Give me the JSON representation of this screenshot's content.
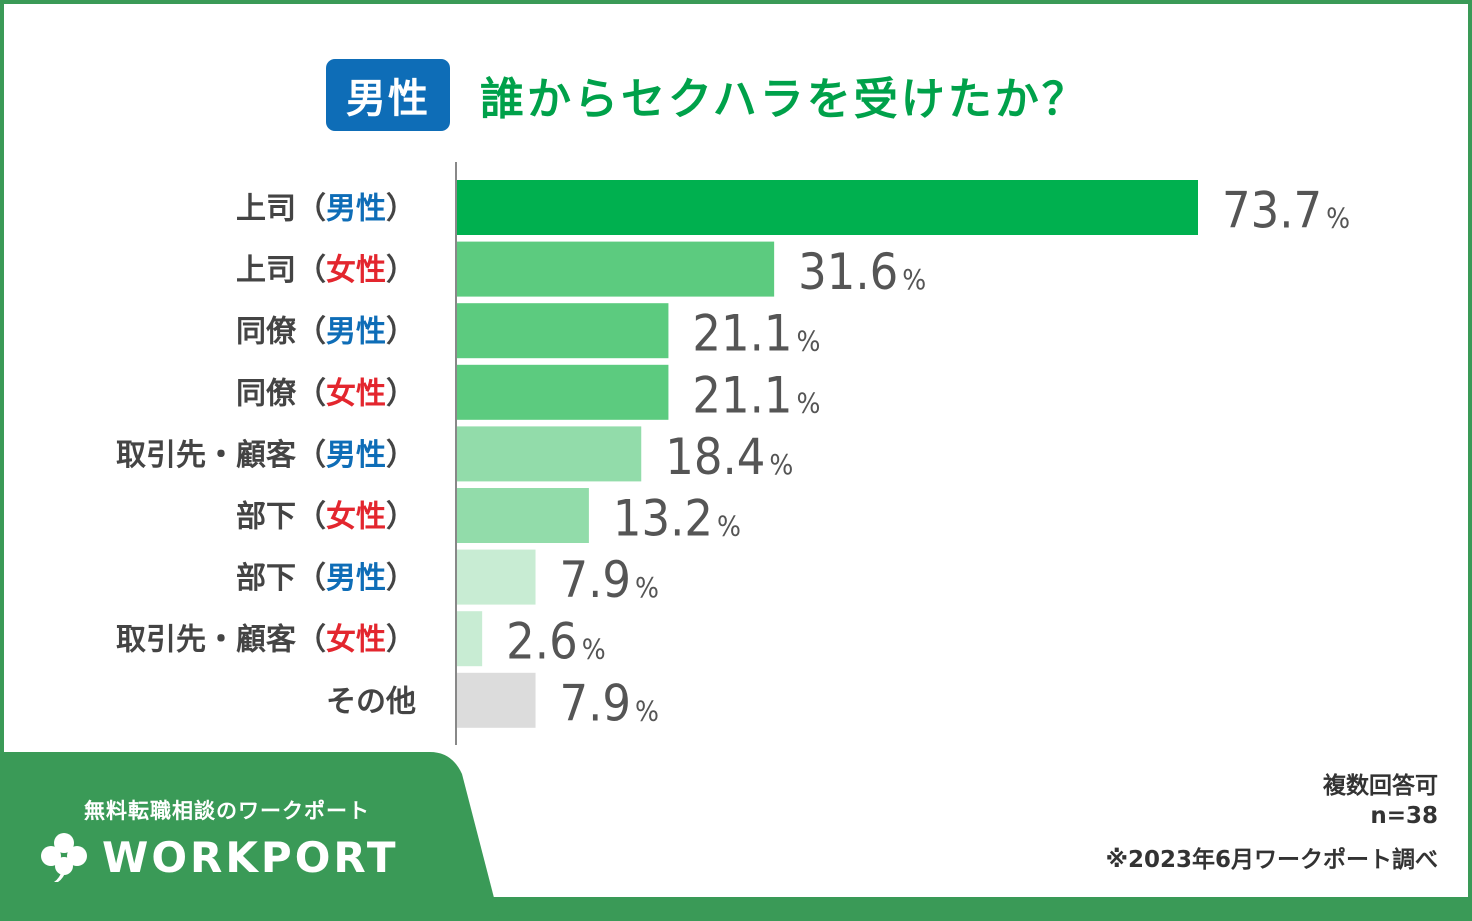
{
  "header": {
    "badge": "男性",
    "title": "誰からセクハラを受けたか？"
  },
  "chart_data": {
    "type": "bar",
    "orientation": "horizontal",
    "title": "誰からセクハラを受けたか？",
    "categories": [
      {
        "label": "上司",
        "gender": "男性",
        "gender_color": "#0e6db7"
      },
      {
        "label": "上司",
        "gender": "女性",
        "gender_color": "#e3262e"
      },
      {
        "label": "同僚",
        "gender": "男性",
        "gender_color": "#0e6db7"
      },
      {
        "label": "同僚",
        "gender": "女性",
        "gender_color": "#e3262e"
      },
      {
        "label": "取引先・顧客",
        "gender": "男性",
        "gender_color": "#0e6db7"
      },
      {
        "label": "部下",
        "gender": "女性",
        "gender_color": "#e3262e"
      },
      {
        "label": "部下",
        "gender": "男性",
        "gender_color": "#0e6db7"
      },
      {
        "label": "取引先・顧客",
        "gender": "女性",
        "gender_color": "#e3262e"
      },
      {
        "label": "その他",
        "gender": "",
        "gender_color": ""
      }
    ],
    "values": [
      73.7,
      31.6,
      21.1,
      21.1,
      18.4,
      13.2,
      7.9,
      2.6,
      7.9
    ],
    "value_labels": [
      "73.7",
      "31.6",
      "21.1",
      "21.1",
      "18.4",
      "13.2",
      "7.9",
      "2.6",
      "7.9"
    ],
    "unit": "%",
    "bar_colors": [
      "#00b04f",
      "#5ccb7f",
      "#5ccb7f",
      "#5ccb7f",
      "#92dcaa",
      "#92dcaa",
      "#c8ecd3",
      "#c8ecd3",
      "#dcdcdc"
    ],
    "xlim": [
      0,
      73.7
    ],
    "grid": false,
    "legend": "none"
  },
  "notes": {
    "multiple": "複数回答可",
    "n": "n=38",
    "source": "※2023年6月ワークポート調べ"
  },
  "brand": {
    "tagline": "無料転職相談のワークポート",
    "name": "WORKPORT"
  },
  "colors": {
    "frame": "#3a9a57",
    "title": "#00a14a",
    "badge": "#0e6db7",
    "male": "#0e6db7",
    "female": "#e3262e"
  }
}
